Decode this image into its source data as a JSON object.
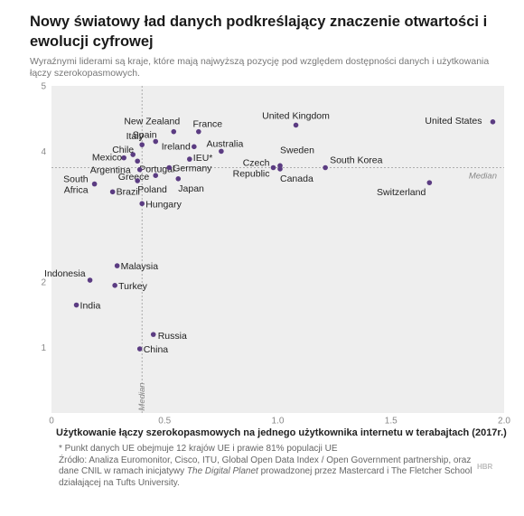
{
  "title": "Nowy światowy ład danych podkreślający znaczenie otwartości i ewolucji cyfrowej",
  "subtitle": "Wyraźnymi liderami są kraje, które mają najwyższą pozycję pod względem dostępności danych i użytkowania łączy szerokopasmowych.",
  "footnote_star": "* Punkt danych UE obejmuje 12 krajów UE i prawie 81% populacji UE",
  "source_prefix": "Źródło: Analiza Euromonitor, Cisco, ITU, Global Open Data Index / Open Government partnership, oraz dane CNIL w ramach inicjatywy ",
  "source_italic": "The Digital Planet",
  "source_suffix": " prowadzonej przez Mastercard i The Fletcher School działającej na Tufts University.",
  "brand": "HBR",
  "colors": {
    "point": "#5b3c82",
    "plot_bg": "#eeeeee",
    "text": "#222222",
    "median": "#999999"
  },
  "chart_data": {
    "type": "scatter",
    "title": "Nowy światowy ład danych podkreślający znaczenie otwartości i ewolucji cyfrowej",
    "xlabel": "Użytkowanie łączy szerokopasmowych na jednego użytkownika internetu w terabajtach (2017r.)",
    "ylabel": "",
    "xlim": [
      0,
      2
    ],
    "ylim": [
      0,
      5
    ],
    "xticks": [
      "0",
      "0.5",
      "1.0",
      "1.5",
      "2.0"
    ],
    "yticks": [
      "1",
      "2",
      "4",
      "5"
    ],
    "grid": false,
    "median_x": 0.4,
    "median_y": 3.75,
    "median_label": "Median",
    "points": [
      {
        "label": "United States",
        "x": 1.95,
        "y": 4.45
      },
      {
        "label": "United Kingdom",
        "x": 1.08,
        "y": 4.4
      },
      {
        "label": "New Zealand",
        "x": 0.54,
        "y": 4.3
      },
      {
        "label": "France",
        "x": 0.65,
        "y": 4.3
      },
      {
        "label": "Spain",
        "x": 0.46,
        "y": 4.15
      },
      {
        "label": "Italy",
        "x": 0.4,
        "y": 4.1
      },
      {
        "label": "Ireland",
        "x": 0.63,
        "y": 4.07
      },
      {
        "label": "Australia",
        "x": 0.75,
        "y": 4.0
      },
      {
        "label": "Chile",
        "x": 0.36,
        "y": 3.95
      },
      {
        "label": "Mexico",
        "x": 0.32,
        "y": 3.9
      },
      {
        "label": "Portugal",
        "x": 0.38,
        "y": 3.85
      },
      {
        "label": "IEU*",
        "x": 0.61,
        "y": 3.88
      },
      {
        "label": "Argentina",
        "x": 0.39,
        "y": 3.72
      },
      {
        "label": "Germany",
        "x": 0.52,
        "y": 3.75
      },
      {
        "label": "Czech Republic",
        "x": 0.98,
        "y": 3.75
      },
      {
        "label": "Sweden",
        "x": 1.01,
        "y": 3.78
      },
      {
        "label": "Canada",
        "x": 1.01,
        "y": 3.73
      },
      {
        "label": "South Korea",
        "x": 1.21,
        "y": 3.75
      },
      {
        "label": "Greece",
        "x": 0.46,
        "y": 3.63
      },
      {
        "label": "Poland",
        "x": 0.38,
        "y": 3.55
      },
      {
        "label": "Japan",
        "x": 0.56,
        "y": 3.58
      },
      {
        "label": "South Africa",
        "x": 0.19,
        "y": 3.5
      },
      {
        "label": "Brazil",
        "x": 0.27,
        "y": 3.38
      },
      {
        "label": "Switzerland",
        "x": 1.67,
        "y": 3.52
      },
      {
        "label": "Hungary",
        "x": 0.4,
        "y": 3.2
      },
      {
        "label": "Malaysia",
        "x": 0.29,
        "y": 2.25
      },
      {
        "label": "Indonesia",
        "x": 0.17,
        "y": 2.03
      },
      {
        "label": "Turkey",
        "x": 0.28,
        "y": 1.95
      },
      {
        "label": "India",
        "x": 0.11,
        "y": 1.65
      },
      {
        "label": "Russia",
        "x": 0.45,
        "y": 1.2
      },
      {
        "label": "China",
        "x": 0.39,
        "y": 0.98
      }
    ]
  }
}
